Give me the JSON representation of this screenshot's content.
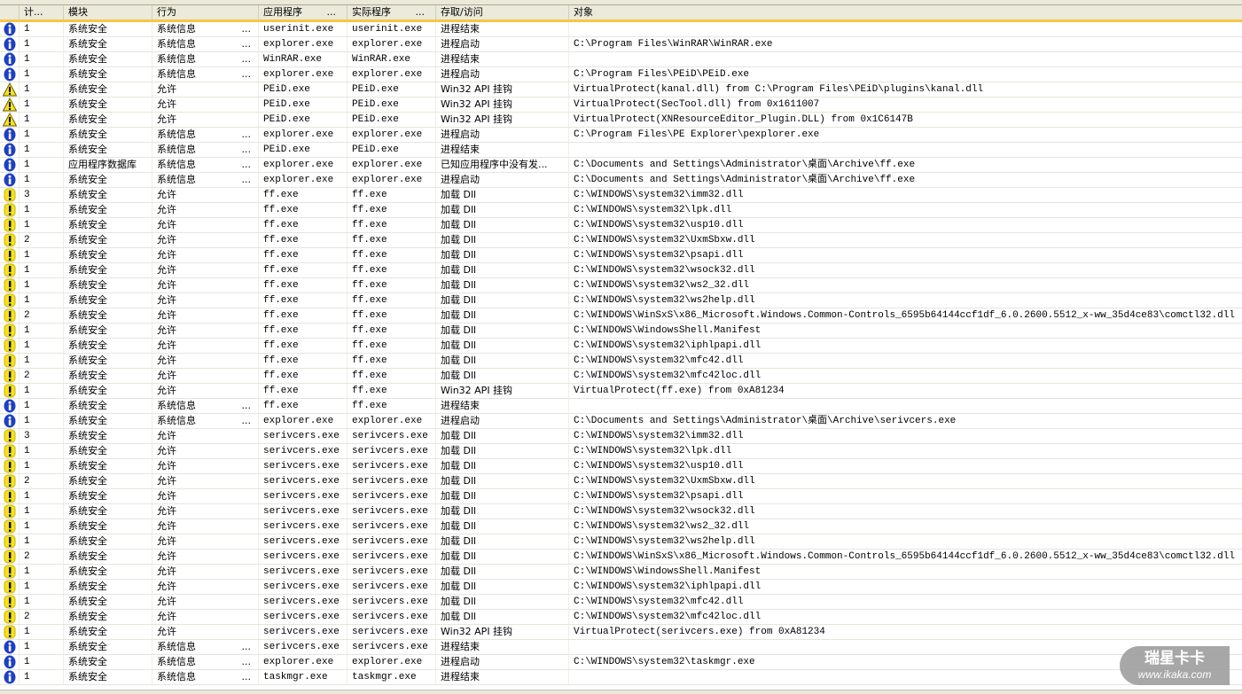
{
  "columns": [
    {
      "label": ""
    },
    {
      "label": "计..."
    },
    {
      "label": "模块"
    },
    {
      "label": "行为"
    },
    {
      "label": "应用程序",
      "more": "..."
    },
    {
      "label": "实际程序",
      "more": "..."
    },
    {
      "label": "存取/访问"
    },
    {
      "label": "对象"
    }
  ],
  "icon_types": {
    "i": "info-icon",
    "w": "warning-icon",
    "e": "exclamation-icon"
  },
  "colors": {
    "info": "#1c3fc4",
    "warning": "#f5e21a",
    "header_accent": "#f6c744"
  },
  "rows": [
    [
      "i",
      "1",
      "系统安全",
      "系统信息",
      "userinit.exe",
      "userinit.exe",
      "进程结束",
      ""
    ],
    [
      "i",
      "1",
      "系统安全",
      "系统信息",
      "explorer.exe",
      "explorer.exe",
      "进程启动",
      "C:\\Program Files\\WinRAR\\WinRAR.exe"
    ],
    [
      "i",
      "1",
      "系统安全",
      "系统信息",
      "WinRAR.exe",
      "WinRAR.exe",
      "进程结束",
      ""
    ],
    [
      "i",
      "1",
      "系统安全",
      "系统信息",
      "explorer.exe",
      "explorer.exe",
      "进程启动",
      "C:\\Program Files\\PEiD\\PEiD.exe"
    ],
    [
      "w",
      "1",
      "系统安全",
      "允许",
      "PEiD.exe",
      "PEiD.exe",
      "Win32 API 挂钩",
      "VirtualProtect(kanal.dll) from C:\\Program Files\\PEiD\\plugins\\kanal.dll"
    ],
    [
      "w",
      "1",
      "系统安全",
      "允许",
      "PEiD.exe",
      "PEiD.exe",
      "Win32 API 挂钩",
      "VirtualProtect(SecTool.dll) from 0x1611007"
    ],
    [
      "w",
      "1",
      "系统安全",
      "允许",
      "PEiD.exe",
      "PEiD.exe",
      "Win32 API 挂钩",
      "VirtualProtect(XNResourceEditor_Plugin.DLL) from 0x1C6147B"
    ],
    [
      "i",
      "1",
      "系统安全",
      "系统信息",
      "explorer.exe",
      "explorer.exe",
      "进程启动",
      "C:\\Program Files\\PE Explorer\\pexplorer.exe"
    ],
    [
      "i",
      "1",
      "系统安全",
      "系统信息",
      "PEiD.exe",
      "PEiD.exe",
      "进程结束",
      ""
    ],
    [
      "i",
      "1",
      "应用程序数据库",
      "系统信息",
      "explorer.exe",
      "explorer.exe",
      "已知应用程序中没有发...",
      "C:\\Documents and Settings\\Administrator\\桌面\\Archive\\ff.exe"
    ],
    [
      "i",
      "1",
      "系统安全",
      "系统信息",
      "explorer.exe",
      "explorer.exe",
      "进程启动",
      "C:\\Documents and Settings\\Administrator\\桌面\\Archive\\ff.exe"
    ],
    [
      "e",
      "3",
      "系统安全",
      "允许",
      "ff.exe",
      "ff.exe",
      "加载 Dll",
      "C:\\WINDOWS\\system32\\imm32.dll"
    ],
    [
      "e",
      "1",
      "系统安全",
      "允许",
      "ff.exe",
      "ff.exe",
      "加载 Dll",
      "C:\\WINDOWS\\system32\\lpk.dll"
    ],
    [
      "e",
      "1",
      "系统安全",
      "允许",
      "ff.exe",
      "ff.exe",
      "加载 Dll",
      "C:\\WINDOWS\\system32\\usp10.dll"
    ],
    [
      "e",
      "2",
      "系统安全",
      "允许",
      "ff.exe",
      "ff.exe",
      "加载 Dll",
      "C:\\WINDOWS\\system32\\UxmSbxw.dll"
    ],
    [
      "e",
      "1",
      "系统安全",
      "允许",
      "ff.exe",
      "ff.exe",
      "加载 Dll",
      "C:\\WINDOWS\\system32\\psapi.dll"
    ],
    [
      "e",
      "1",
      "系统安全",
      "允许",
      "ff.exe",
      "ff.exe",
      "加载 Dll",
      "C:\\WINDOWS\\system32\\wsock32.dll"
    ],
    [
      "e",
      "1",
      "系统安全",
      "允许",
      "ff.exe",
      "ff.exe",
      "加载 Dll",
      "C:\\WINDOWS\\system32\\ws2_32.dll"
    ],
    [
      "e",
      "1",
      "系统安全",
      "允许",
      "ff.exe",
      "ff.exe",
      "加载 Dll",
      "C:\\WINDOWS\\system32\\ws2help.dll"
    ],
    [
      "e",
      "2",
      "系统安全",
      "允许",
      "ff.exe",
      "ff.exe",
      "加载 Dll",
      "C:\\WINDOWS\\WinSxS\\x86_Microsoft.Windows.Common-Controls_6595b64144ccf1df_6.0.2600.5512_x-ww_35d4ce83\\comctl32.dll"
    ],
    [
      "e",
      "1",
      "系统安全",
      "允许",
      "ff.exe",
      "ff.exe",
      "加载 Dll",
      "C:\\WINDOWS\\WindowsShell.Manifest"
    ],
    [
      "e",
      "1",
      "系统安全",
      "允许",
      "ff.exe",
      "ff.exe",
      "加载 Dll",
      "C:\\WINDOWS\\system32\\iphlpapi.dll"
    ],
    [
      "e",
      "1",
      "系统安全",
      "允许",
      "ff.exe",
      "ff.exe",
      "加载 Dll",
      "C:\\WINDOWS\\system32\\mfc42.dll"
    ],
    [
      "e",
      "2",
      "系统安全",
      "允许",
      "ff.exe",
      "ff.exe",
      "加载 Dll",
      "C:\\WINDOWS\\system32\\mfc42loc.dll"
    ],
    [
      "e",
      "1",
      "系统安全",
      "允许",
      "ff.exe",
      "ff.exe",
      "Win32 API 挂钩",
      "VirtualProtect(ff.exe) from 0xA81234"
    ],
    [
      "i",
      "1",
      "系统安全",
      "系统信息",
      "ff.exe",
      "ff.exe",
      "进程结束",
      ""
    ],
    [
      "i",
      "1",
      "系统安全",
      "系统信息",
      "explorer.exe",
      "explorer.exe",
      "进程启动",
      "C:\\Documents and Settings\\Administrator\\桌面\\Archive\\serivcers.exe"
    ],
    [
      "e",
      "3",
      "系统安全",
      "允许",
      "serivcers.exe",
      "serivcers.exe",
      "加载 Dll",
      "C:\\WINDOWS\\system32\\imm32.dll"
    ],
    [
      "e",
      "1",
      "系统安全",
      "允许",
      "serivcers.exe",
      "serivcers.exe",
      "加载 Dll",
      "C:\\WINDOWS\\system32\\lpk.dll"
    ],
    [
      "e",
      "1",
      "系统安全",
      "允许",
      "serivcers.exe",
      "serivcers.exe",
      "加载 Dll",
      "C:\\WINDOWS\\system32\\usp10.dll"
    ],
    [
      "e",
      "2",
      "系统安全",
      "允许",
      "serivcers.exe",
      "serivcers.exe",
      "加载 Dll",
      "C:\\WINDOWS\\system32\\UxmSbxw.dll"
    ],
    [
      "e",
      "1",
      "系统安全",
      "允许",
      "serivcers.exe",
      "serivcers.exe",
      "加载 Dll",
      "C:\\WINDOWS\\system32\\psapi.dll"
    ],
    [
      "e",
      "1",
      "系统安全",
      "允许",
      "serivcers.exe",
      "serivcers.exe",
      "加载 Dll",
      "C:\\WINDOWS\\system32\\wsock32.dll"
    ],
    [
      "e",
      "1",
      "系统安全",
      "允许",
      "serivcers.exe",
      "serivcers.exe",
      "加载 Dll",
      "C:\\WINDOWS\\system32\\ws2_32.dll"
    ],
    [
      "e",
      "1",
      "系统安全",
      "允许",
      "serivcers.exe",
      "serivcers.exe",
      "加载 Dll",
      "C:\\WINDOWS\\system32\\ws2help.dll"
    ],
    [
      "e",
      "2",
      "系统安全",
      "允许",
      "serivcers.exe",
      "serivcers.exe",
      "加载 Dll",
      "C:\\WINDOWS\\WinSxS\\x86_Microsoft.Windows.Common-Controls_6595b64144ccf1df_6.0.2600.5512_x-ww_35d4ce83\\comctl32.dll"
    ],
    [
      "e",
      "1",
      "系统安全",
      "允许",
      "serivcers.exe",
      "serivcers.exe",
      "加载 Dll",
      "C:\\WINDOWS\\WindowsShell.Manifest"
    ],
    [
      "e",
      "1",
      "系统安全",
      "允许",
      "serivcers.exe",
      "serivcers.exe",
      "加载 Dll",
      "C:\\WINDOWS\\system32\\iphlpapi.dll"
    ],
    [
      "e",
      "1",
      "系统安全",
      "允许",
      "serivcers.exe",
      "serivcers.exe",
      "加载 Dll",
      "C:\\WINDOWS\\system32\\mfc42.dll"
    ],
    [
      "e",
      "2",
      "系统安全",
      "允许",
      "serivcers.exe",
      "serivcers.exe",
      "加载 Dll",
      "C:\\WINDOWS\\system32\\mfc42loc.dll"
    ],
    [
      "e",
      "1",
      "系统安全",
      "允许",
      "serivcers.exe",
      "serivcers.exe",
      "Win32 API 挂钩",
      "VirtualProtect(serivcers.exe) from 0xA81234"
    ],
    [
      "i",
      "1",
      "系统安全",
      "系统信息",
      "serivcers.exe",
      "serivcers.exe",
      "进程结束",
      ""
    ],
    [
      "i",
      "1",
      "系统安全",
      "系统信息",
      "explorer.exe",
      "explorer.exe",
      "进程启动",
      "C:\\WINDOWS\\system32\\taskmgr.exe"
    ],
    [
      "i",
      "1",
      "系统安全",
      "系统信息",
      "taskmgr.exe",
      "taskmgr.exe",
      "进程结束",
      ""
    ]
  ],
  "row_more": "...",
  "watermark": {
    "title": "瑞星卡卡",
    "url": "www.ikaka.com"
  }
}
